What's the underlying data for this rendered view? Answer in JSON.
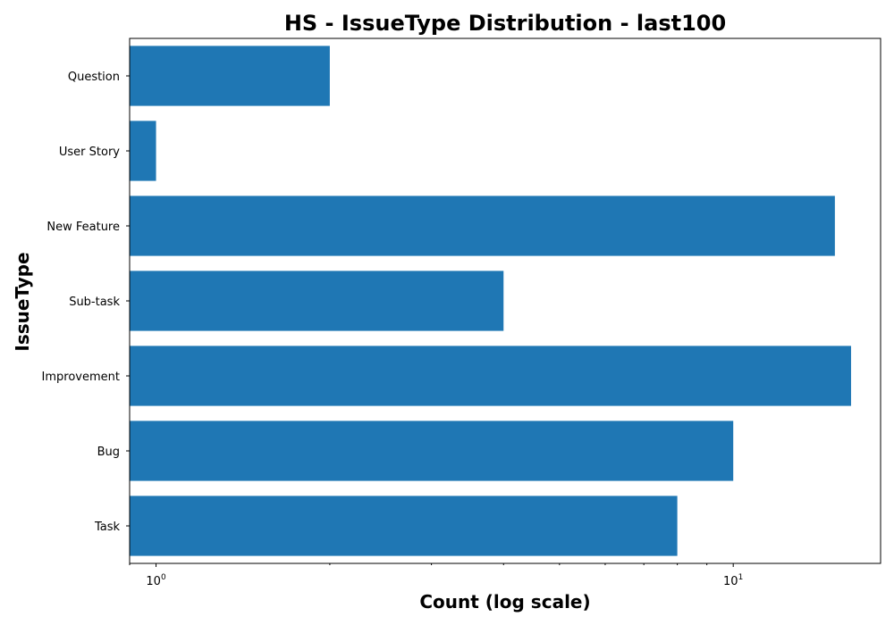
{
  "chart_data": {
    "type": "bar",
    "orientation": "horizontal",
    "title": "HS - IssueType Distribution - last100",
    "xlabel": "Count (log scale)",
    "ylabel": "IssueType",
    "x_scale": "log",
    "xlim": [
      0.9,
      18
    ],
    "categories": [
      "Task",
      "Bug",
      "Improvement",
      "Sub-task",
      "New Feature",
      "User Story",
      "Question"
    ],
    "values": [
      8,
      10,
      16,
      4,
      15,
      1,
      2
    ],
    "x_ticks": [
      {
        "value": 1,
        "base": "10",
        "exponent": "0"
      },
      {
        "value": 10,
        "base": "10",
        "exponent": "1"
      }
    ],
    "bar_color": "#1f77b4",
    "grid": false,
    "legend": "none"
  }
}
